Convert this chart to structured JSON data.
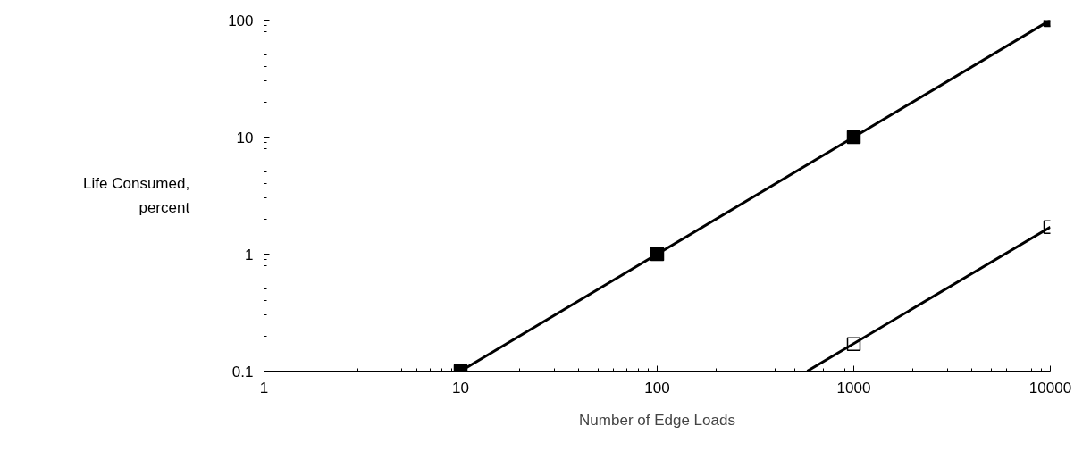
{
  "chart_data": {
    "type": "line",
    "xlabel": "Number of Edge Loads",
    "ylabel": "Life Consumed, percent",
    "log": "xy",
    "xlim": [
      1,
      10000
    ],
    "ylim": [
      0.1,
      100
    ],
    "xticks": [
      1,
      10,
      100,
      1000,
      10000
    ],
    "yticks": [
      0.1,
      1,
      10,
      100
    ],
    "grid": false,
    "series": [
      {
        "marker": "square",
        "color": "#000000",
        "x": [
          10,
          100,
          1000,
          10000
        ],
        "values": [
          0.1,
          1,
          10,
          100
        ]
      },
      {
        "type": "scatter",
        "marker": "square",
        "color": "#ffffff",
        "x": [
          1000,
          10000
        ],
        "values": [
          0.17,
          1.7
        ]
      },
      {
        "type": "line",
        "marker": "none",
        "color": "#000000",
        "x": [
          580,
          10000
        ],
        "values": [
          0.1,
          1.7
        ]
      }
    ]
  }
}
